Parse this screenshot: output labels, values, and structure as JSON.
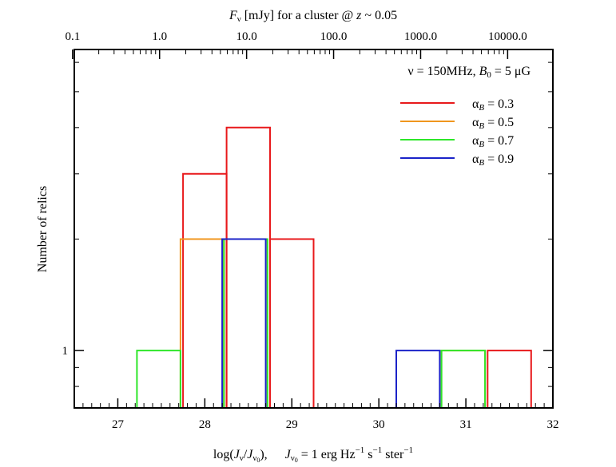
{
  "chart_data": {
    "type": "histogram",
    "title": "",
    "xlabel": "log(Jν/Jν0),    Jν0 = 1 erg Hz⁻¹ s⁻¹ ster⁻¹",
    "xlabel_parts": {
      "log_prefix": "log(",
      "J": "J",
      "nu": "ν",
      "slash": "/",
      "nu0": "ν",
      "zero": "0",
      "close": "),",
      "eq_rest": " = 1 erg Hz",
      "minus1": "−1",
      "s": " s",
      "ster": " ster"
    },
    "ylabel": "Number of relics",
    "top_xlabel": {
      "F": "F",
      "nu": "ν",
      "rest": " [mJy] for a cluster @ ",
      "z": "z",
      "tail": " ~ 0.05"
    },
    "xlim": [
      26.5,
      32
    ],
    "xticks": [
      "27",
      "28",
      "29",
      "30",
      "31",
      "32"
    ],
    "yscale": "log",
    "ylim": [
      0.7,
      6.5
    ],
    "yticks": [
      "1"
    ],
    "top_axis_ticks": [
      "0.1",
      "1.0",
      "10.0",
      "100.0",
      "1000.0",
      "10000.0"
    ],
    "top_axis_tick_logx": [
      26.48,
      27.48,
      28.48,
      29.48,
      30.48,
      31.48
    ],
    "annotation": {
      "nu": "ν",
      "text1": " = 150MHz, ",
      "B": "B",
      "zero": "0",
      "text2": " = 5 μG"
    },
    "legend_position": "top-right",
    "series": [
      {
        "name": "αB = 0.3",
        "alpha_label": "α",
        "sub": "B",
        "value": " = 0.3",
        "color": "#e8191b",
        "bins": [
          {
            "x0": 27.75,
            "x1": 28.25,
            "count": 3
          },
          {
            "x0": 28.25,
            "x1": 28.75,
            "count": 4
          },
          {
            "x0": 28.75,
            "x1": 29.25,
            "count": 2
          },
          {
            "x0": 31.25,
            "x1": 31.75,
            "count": 1
          }
        ]
      },
      {
        "name": "αB = 0.5",
        "alpha_label": "α",
        "sub": "B",
        "value": " = 0.5",
        "color": "#f0961e",
        "bins": [
          {
            "x0": 27.72,
            "x1": 28.22,
            "count": 2
          },
          {
            "x0": 28.22,
            "x1": 28.72,
            "count": 2
          },
          {
            "x0": 30.72,
            "x1": 31.22,
            "count": 1
          }
        ]
      },
      {
        "name": "αB = 0.7",
        "alpha_label": "α",
        "sub": "B",
        "value": " = 0.7",
        "color": "#2ee62a",
        "bins": [
          {
            "x0": 27.22,
            "x1": 27.72,
            "count": 1
          },
          {
            "x0": 28.22,
            "x1": 28.72,
            "count": 2
          },
          {
            "x0": 30.72,
            "x1": 31.22,
            "count": 1
          }
        ]
      },
      {
        "name": "αB = 0.9",
        "alpha_label": "α",
        "sub": "B",
        "value": " = 0.9",
        "color": "#1b23c8",
        "bins": [
          {
            "x0": 28.2,
            "x1": 28.7,
            "count": 2
          },
          {
            "x0": 30.2,
            "x1": 30.7,
            "count": 1
          }
        ]
      }
    ]
  }
}
